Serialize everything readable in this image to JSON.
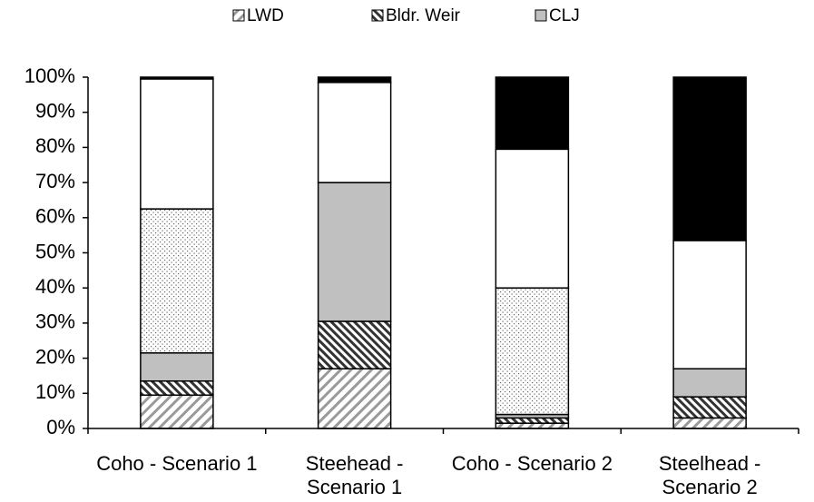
{
  "chart_data": {
    "type": "stacked-bar",
    "categories": [
      "Coho - Scenario 1",
      "Steehead - Scenario 1",
      "Coho - Scenario 2",
      "Steelhead - Scenario 2"
    ],
    "series": [
      {
        "name": "LWD",
        "pattern": "back-hatch",
        "values": [
          9.5,
          17,
          1.5,
          3
        ]
      },
      {
        "name": "Bldr. Weir",
        "pattern": "forward-hatch",
        "values": [
          4,
          13.5,
          1.5,
          6
        ]
      },
      {
        "name": "CLJ",
        "color": "#c0c0c0",
        "values": [
          8,
          39.5,
          1,
          8
        ]
      },
      {
        "pattern": "dots",
        "values": [
          41,
          0,
          36,
          0
        ]
      },
      {
        "color": "#ffffff",
        "values": [
          37,
          28.5,
          39.5,
          36.5
        ]
      },
      {
        "color": "#000000",
        "values": [
          0.5,
          1.5,
          20.5,
          46.5
        ]
      }
    ],
    "ylim": [
      0,
      100
    ],
    "yticks": [
      {
        "value": 0,
        "label": "0%"
      },
      {
        "value": 10,
        "label": "10%"
      },
      {
        "value": 20,
        "label": "20%"
      },
      {
        "value": 30,
        "label": "30%"
      },
      {
        "value": 40,
        "label": "40%"
      },
      {
        "value": 50,
        "label": "50%"
      },
      {
        "value": 60,
        "label": "60%"
      },
      {
        "value": 70,
        "label": "70%"
      },
      {
        "value": 80,
        "label": "80%"
      },
      {
        "value": 90,
        "label": "90%"
      },
      {
        "value": 100,
        "label": "100%"
      }
    ],
    "legend": "top"
  }
}
